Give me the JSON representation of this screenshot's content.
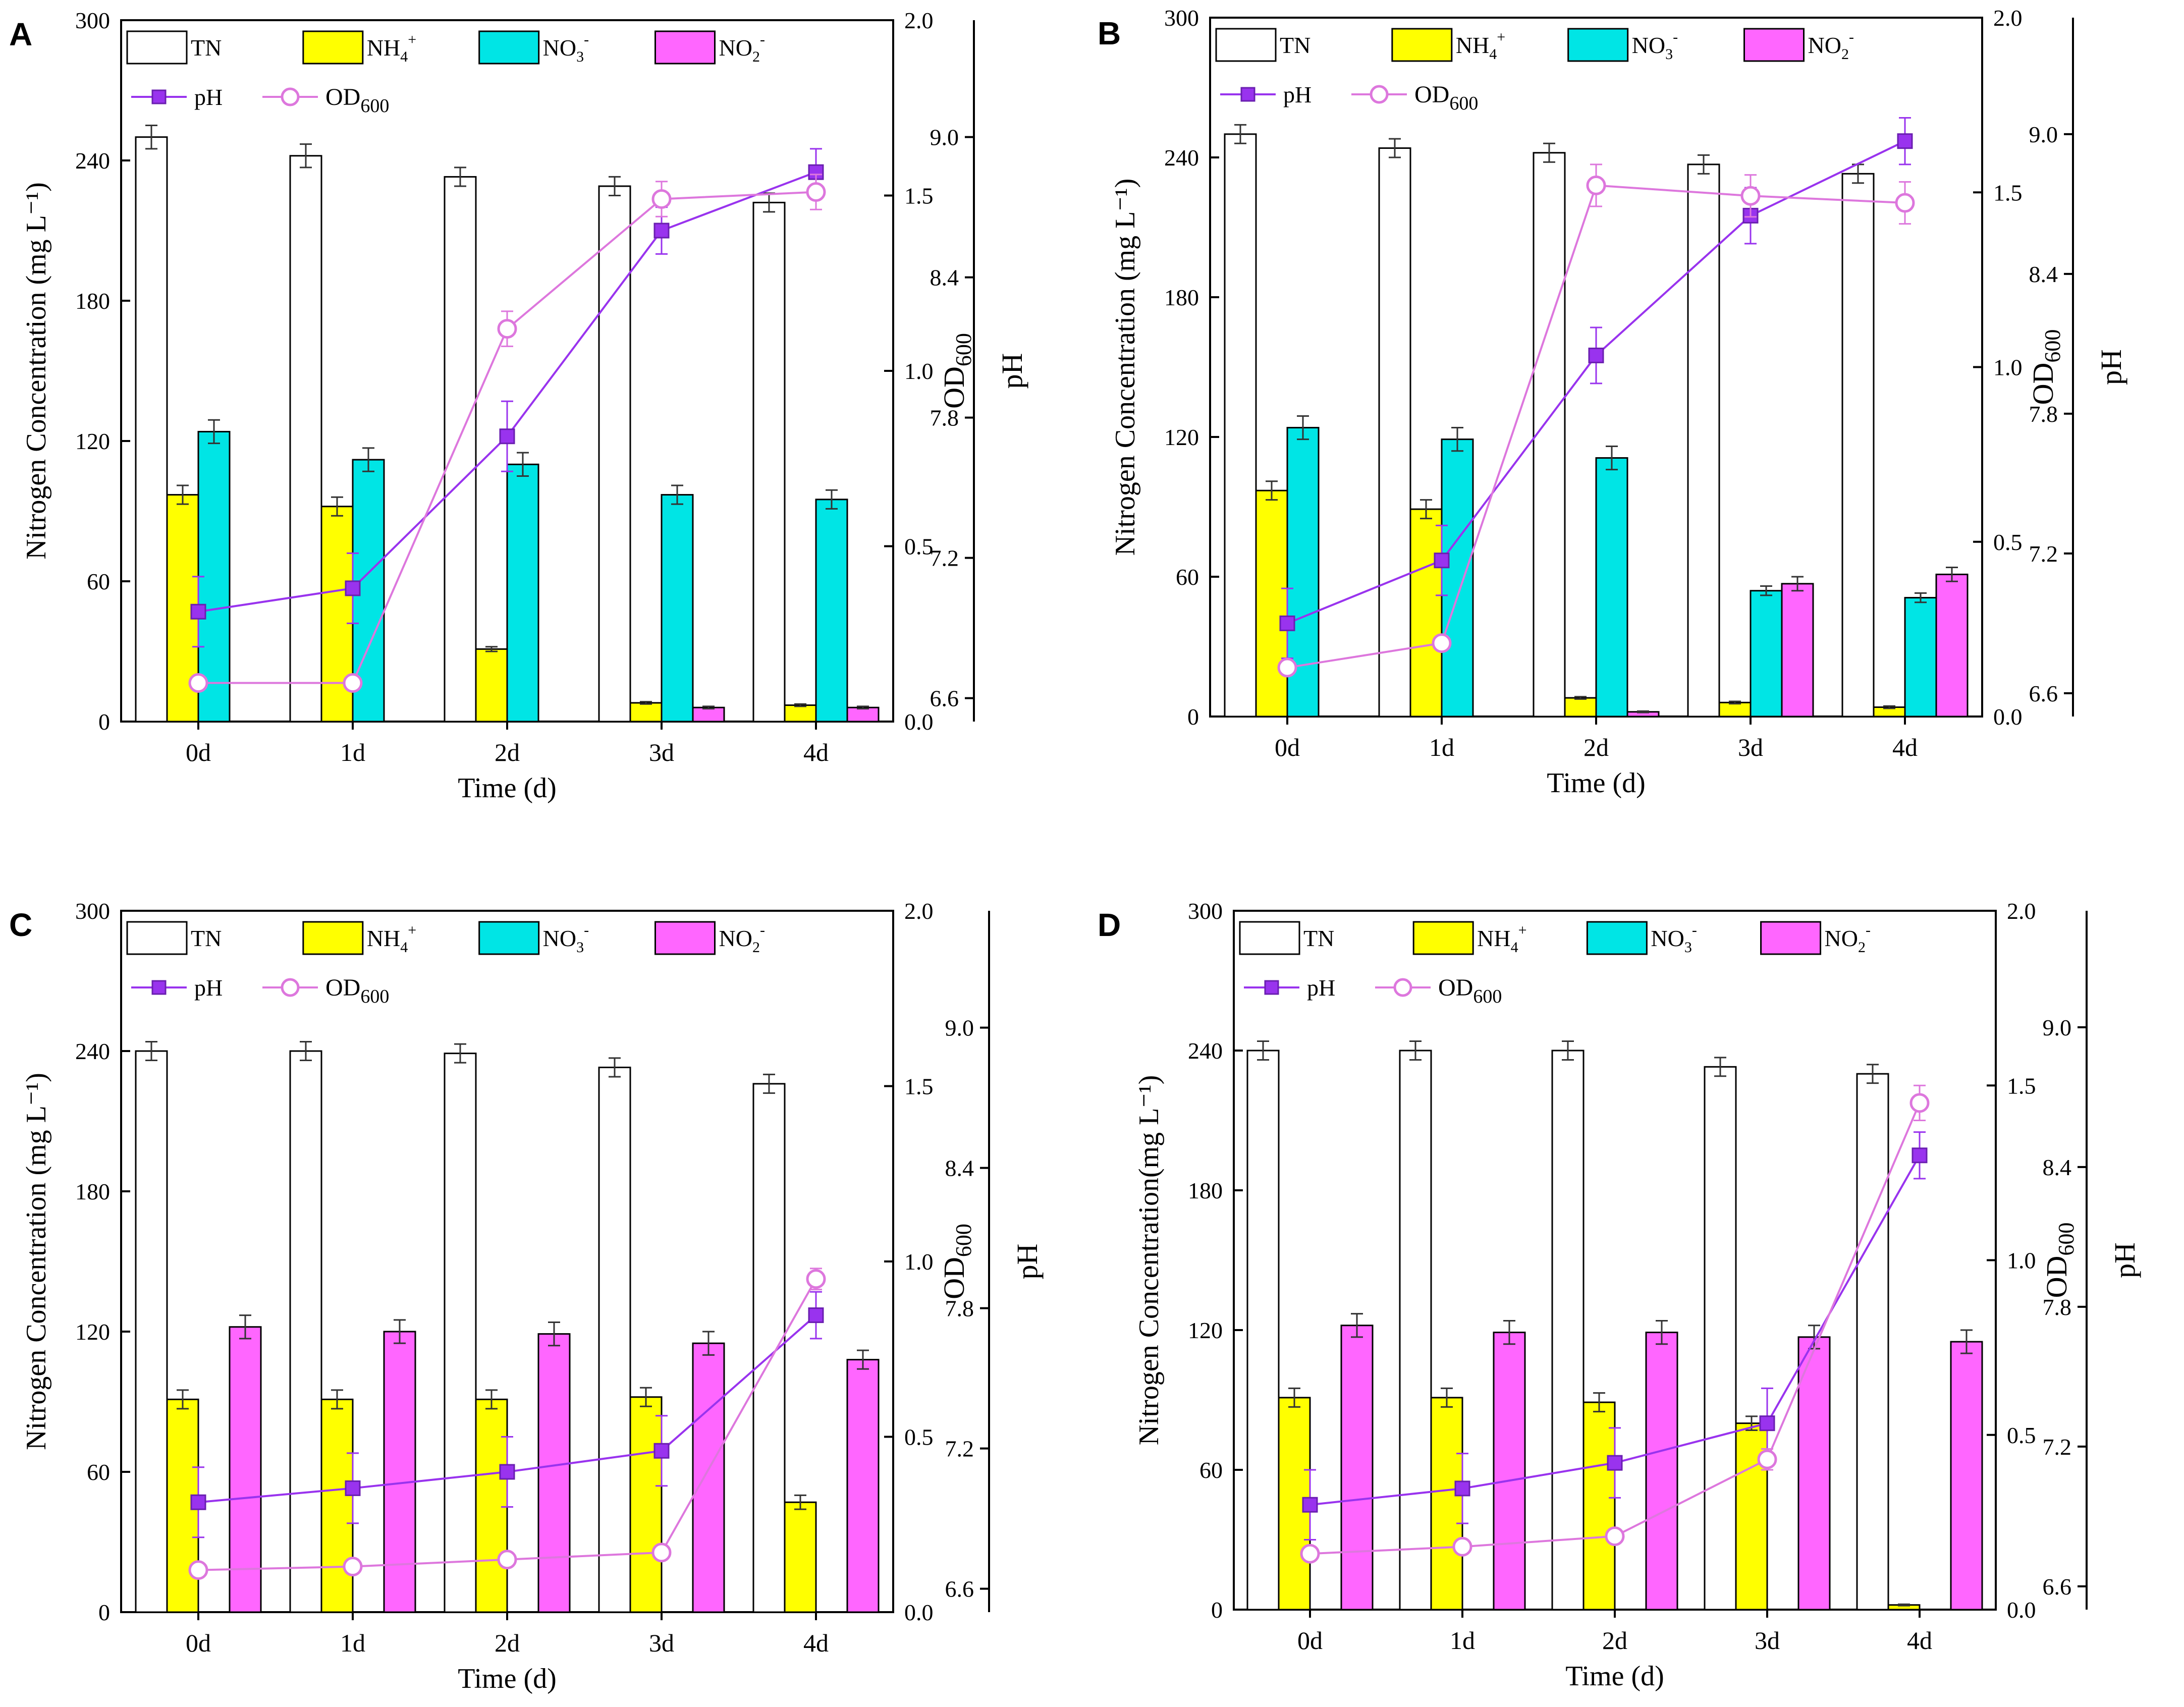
{
  "colors": {
    "TN": "#ffffff",
    "NH4": "#ffff00",
    "NO3": "#00e5e5",
    "NO2": "#ff66ff",
    "pH": "#9933ee",
    "OD600": "#dd77dd",
    "axis": "#000000"
  },
  "legend": {
    "TN": "TN",
    "NH4": "NH",
    "NH4_sub": "4",
    "NH4_sup": "+",
    "NO3": "NO",
    "NO3_sub": "3",
    "NO3_sup": "-",
    "NO2": "NO",
    "NO2_sub": "2",
    "NO2_sup": "-",
    "pH": "pH",
    "OD": "OD",
    "OD_sub": "600"
  },
  "chart_data": [
    {
      "panel": "A",
      "type": "bar",
      "categories": [
        "0d",
        "1d",
        "2d",
        "3d",
        "4d"
      ],
      "xlabel": "Time (d)",
      "ylabel": "Nitrogen Concentration (mg L⁻¹)",
      "ylim": [
        0,
        300
      ],
      "yticks": [
        "0",
        "60",
        "120",
        "180",
        "240",
        "300"
      ],
      "od_label": "OD600",
      "od_lim": [
        0,
        2
      ],
      "od_ticks": [
        "0.0",
        "0.5",
        "1.0",
        "1.5",
        "2.0"
      ],
      "ph_label": "pH",
      "ph_lim": [
        6.5,
        9.5
      ],
      "ph_ticks": [
        "6.6",
        "7.2",
        "7.8",
        "8.4",
        "9.0"
      ],
      "series": [
        {
          "name": "TN",
          "values": [
            250,
            242,
            233,
            229,
            222
          ],
          "errors": [
            5,
            5,
            4,
            4,
            4
          ]
        },
        {
          "name": "NH4+",
          "values": [
            97,
            92,
            31,
            8,
            7
          ],
          "errors": [
            4,
            4,
            1,
            0.5,
            0.5
          ]
        },
        {
          "name": "NO3-",
          "values": [
            124,
            112,
            110,
            97,
            95
          ],
          "errors": [
            5,
            5,
            5,
            4,
            4
          ]
        },
        {
          "name": "NO2-",
          "values": [
            0,
            0,
            0,
            6,
            6
          ],
          "errors": [
            0,
            0,
            0,
            0.5,
            0.5
          ]
        }
      ],
      "lines": [
        {
          "name": "pH",
          "axis": "ph",
          "values": [
            6.97,
            7.07,
            7.72,
            8.6,
            8.85
          ],
          "errors": [
            0.15,
            0.15,
            0.15,
            0.1,
            0.1
          ]
        },
        {
          "name": "OD600",
          "axis": "od",
          "values": [
            0.11,
            0.11,
            1.12,
            1.49,
            1.51
          ],
          "errors": [
            0.02,
            0.02,
            0.05,
            0.05,
            0.05
          ]
        }
      ]
    },
    {
      "panel": "B",
      "type": "bar",
      "categories": [
        "0d",
        "1d",
        "2d",
        "3d",
        "4d"
      ],
      "xlabel": "Time (d)",
      "ylabel": "Nitrogen Concentration (mg L⁻¹)",
      "ylim": [
        0,
        300
      ],
      "yticks": [
        "0",
        "60",
        "120",
        "180",
        "240",
        "300"
      ],
      "od_label": "OD600",
      "od_lim": [
        0,
        2
      ],
      "od_ticks": [
        "0.0",
        "0.5",
        "1.0",
        "1.5",
        "2.0"
      ],
      "ph_label": "pH",
      "ph_lim": [
        6.5,
        9.5
      ],
      "ph_ticks": [
        "6.6",
        "7.2",
        "7.8",
        "8.4",
        "9.0"
      ],
      "series": [
        {
          "name": "TN",
          "values": [
            250,
            244,
            242,
            237,
            233
          ],
          "errors": [
            4,
            4,
            4,
            4,
            4
          ]
        },
        {
          "name": "NH4+",
          "values": [
            97,
            89,
            8,
            6,
            4
          ],
          "errors": [
            4,
            4,
            0.5,
            0.5,
            0.5
          ]
        },
        {
          "name": "NO3-",
          "values": [
            124,
            119,
            111,
            54,
            51
          ],
          "errors": [
            5,
            5,
            5,
            2,
            2
          ]
        },
        {
          "name": "NO2-",
          "values": [
            0,
            0,
            2,
            57,
            61
          ],
          "errors": [
            0,
            0,
            0.3,
            3,
            3
          ]
        }
      ],
      "lines": [
        {
          "name": "pH",
          "axis": "ph",
          "values": [
            6.9,
            7.17,
            8.05,
            8.65,
            8.97
          ],
          "errors": [
            0.15,
            0.15,
            0.12,
            0.12,
            0.1
          ]
        },
        {
          "name": "OD600",
          "axis": "od",
          "values": [
            0.14,
            0.21,
            1.52,
            1.49,
            1.47
          ],
          "errors": [
            0.02,
            0.02,
            0.06,
            0.06,
            0.06
          ]
        }
      ]
    },
    {
      "panel": "C",
      "type": "bar",
      "categories": [
        "0d",
        "1d",
        "2d",
        "3d",
        "4d"
      ],
      "xlabel": "Time (d)",
      "ylabel": "Nitrogen Concentration (mg L⁻¹)",
      "ylim": [
        0,
        300
      ],
      "yticks": [
        "0",
        "60",
        "120",
        "180",
        "240",
        "300"
      ],
      "od_label": "OD600",
      "od_lim": [
        0,
        2
      ],
      "od_ticks": [
        "0.0",
        "0.5",
        "1.0",
        "1.5",
        "2.0"
      ],
      "ph_label": "pH",
      "ph_lim": [
        6.5,
        9.5
      ],
      "ph_ticks": [
        "6.6",
        "7.2",
        "7.8",
        "8.4",
        "9.0"
      ],
      "series": [
        {
          "name": "TN",
          "values": [
            240,
            240,
            239,
            233,
            226
          ],
          "errors": [
            4,
            4,
            4,
            4,
            4
          ]
        },
        {
          "name": "NH4+",
          "values": [
            91,
            91,
            91,
            92,
            47
          ],
          "errors": [
            4,
            4,
            4,
            4,
            3
          ]
        },
        {
          "name": "NO3-",
          "values": [
            0,
            0,
            0,
            0,
            0
          ],
          "errors": [
            0,
            0,
            0,
            0,
            0
          ]
        },
        {
          "name": "NO2-",
          "values": [
            122,
            120,
            119,
            115,
            108
          ],
          "errors": [
            5,
            5,
            5,
            5,
            4
          ]
        }
      ],
      "lines": [
        {
          "name": "pH",
          "axis": "ph",
          "values": [
            6.97,
            7.03,
            7.1,
            7.19,
            7.77
          ],
          "errors": [
            0.15,
            0.15,
            0.15,
            0.15,
            0.1
          ]
        },
        {
          "name": "OD600",
          "axis": "od",
          "values": [
            0.12,
            0.13,
            0.15,
            0.17,
            0.95
          ],
          "errors": [
            0.02,
            0.02,
            0.02,
            0.02,
            0.03
          ]
        }
      ]
    },
    {
      "panel": "D",
      "type": "bar",
      "categories": [
        "0d",
        "1d",
        "2d",
        "3d",
        "4d"
      ],
      "xlabel": "Time (d)",
      "ylabel": "Nitrogen Concentration(mg L⁻¹)",
      "ylim": [
        0,
        300
      ],
      "yticks": [
        "0",
        "60",
        "120",
        "180",
        "240",
        "300"
      ],
      "od_label": "OD600",
      "od_lim": [
        0,
        2
      ],
      "od_ticks": [
        "0.0",
        "0.5",
        "1.0",
        "1.5",
        "2.0"
      ],
      "ph_label": "pH",
      "ph_lim": [
        6.5,
        9.5
      ],
      "ph_ticks": [
        "6.6",
        "7.2",
        "7.8",
        "8.4",
        "9.0"
      ],
      "series": [
        {
          "name": "TN",
          "values": [
            240,
            240,
            240,
            233,
            230
          ],
          "errors": [
            4,
            4,
            4,
            4,
            4
          ]
        },
        {
          "name": "NH4+",
          "values": [
            91,
            91,
            89,
            80,
            2
          ],
          "errors": [
            4,
            4,
            4,
            3,
            0.3
          ]
        },
        {
          "name": "NO3-",
          "values": [
            0,
            0,
            0,
            0,
            0
          ],
          "errors": [
            0,
            0,
            0,
            0,
            0
          ]
        },
        {
          "name": "NO2-",
          "values": [
            122,
            119,
            119,
            117,
            115
          ],
          "errors": [
            5,
            5,
            5,
            5,
            5
          ]
        }
      ],
      "lines": [
        {
          "name": "pH",
          "axis": "ph",
          "values": [
            6.95,
            7.02,
            7.13,
            7.3,
            8.45
          ],
          "errors": [
            0.15,
            0.15,
            0.15,
            0.15,
            0.1
          ]
        },
        {
          "name": "OD600",
          "axis": "od",
          "values": [
            0.16,
            0.18,
            0.21,
            0.43,
            1.45
          ],
          "errors": [
            0.02,
            0.02,
            0.02,
            0.03,
            0.05
          ]
        }
      ]
    }
  ]
}
